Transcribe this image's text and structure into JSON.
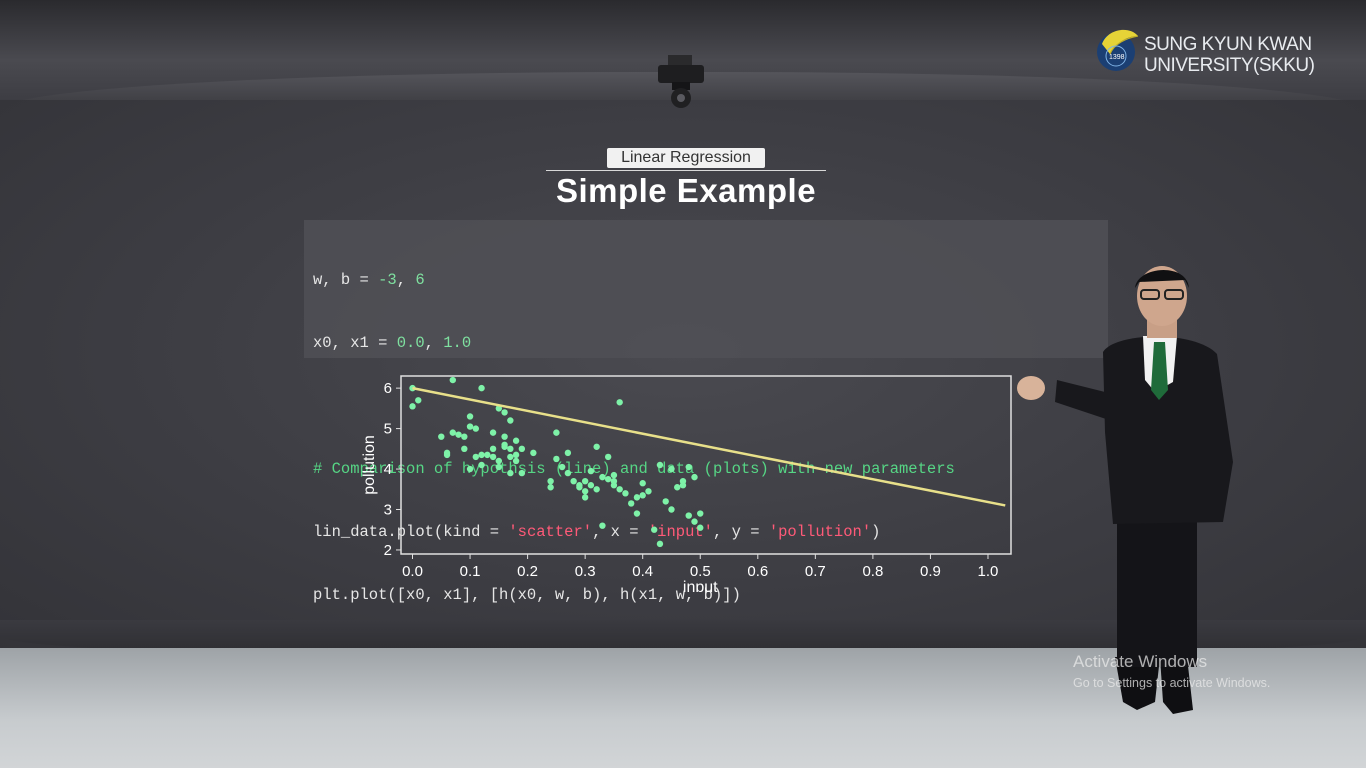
{
  "logo": {
    "line1": "SUNG KYUN KWAN",
    "line2": "UNIVERSITY(SKKU)",
    "year": "1398"
  },
  "slide": {
    "subtitle": "Linear Regression",
    "title": "Simple Example"
  },
  "code": {
    "line1": {
      "pre": "w, b = ",
      "v1": "-3",
      "sep": ", ",
      "v2": "6"
    },
    "line2": {
      "pre": "x0, x1 = ",
      "v1": "0.0",
      "sep": ", ",
      "v2": "1.0"
    },
    "comment": "# Comparison of hypothsis (line) and data (plots) with new parameters",
    "line4": {
      "p1": "lin_data.plot(kind = ",
      "s1": "'scatter'",
      "p2": ", x = ",
      "s2": "'input'",
      "p3": ", y = ",
      "s3": "'pollution'",
      "p4": ")"
    },
    "line5": "plt.plot([x0, x1], [h(x0, w, b), h(x1, w, b)])"
  },
  "chart_data": {
    "type": "scatter",
    "xlabel": "input",
    "ylabel": "pollution",
    "xlim": [
      -0.02,
      1.04
    ],
    "ylim": [
      1.9,
      6.3
    ],
    "xticks": [
      "0.0",
      "0.1",
      "0.2",
      "0.3",
      "0.4",
      "0.5",
      "0.6",
      "0.7",
      "0.8",
      "0.9",
      "1.0"
    ],
    "yticks": [
      "2",
      "3",
      "4",
      "5",
      "6"
    ],
    "colors": {
      "points": "#7ef2a8",
      "line": "#e8e08a",
      "axes": "#e0e0e0"
    },
    "line": {
      "x": [
        0.0,
        1.03
      ],
      "y": [
        6.0,
        3.1
      ]
    },
    "points": [
      [
        0.0,
        6.0
      ],
      [
        0.0,
        5.55
      ],
      [
        0.01,
        5.7
      ],
      [
        0.05,
        4.8
      ],
      [
        0.06,
        4.4
      ],
      [
        0.06,
        4.35
      ],
      [
        0.07,
        4.9
      ],
      [
        0.08,
        4.85
      ],
      [
        0.07,
        6.2
      ],
      [
        0.09,
        4.8
      ],
      [
        0.09,
        4.5
      ],
      [
        0.1,
        5.3
      ],
      [
        0.1,
        5.05
      ],
      [
        0.11,
        4.3
      ],
      [
        0.1,
        4.0
      ],
      [
        0.12,
        4.1
      ],
      [
        0.11,
        5.0
      ],
      [
        0.12,
        6.0
      ],
      [
        0.12,
        4.35
      ],
      [
        0.13,
        4.35
      ],
      [
        0.14,
        4.3
      ],
      [
        0.14,
        4.9
      ],
      [
        0.15,
        4.05
      ],
      [
        0.15,
        4.2
      ],
      [
        0.16,
        4.6
      ],
      [
        0.16,
        4.8
      ],
      [
        0.17,
        3.9
      ],
      [
        0.17,
        4.3
      ],
      [
        0.17,
        4.5
      ],
      [
        0.18,
        4.7
      ],
      [
        0.18,
        4.35
      ],
      [
        0.19,
        4.5
      ],
      [
        0.19,
        3.9
      ],
      [
        0.21,
        4.4
      ],
      [
        0.15,
        5.5
      ],
      [
        0.16,
        5.4
      ],
      [
        0.17,
        5.2
      ],
      [
        0.18,
        4.2
      ],
      [
        0.14,
        4.5
      ],
      [
        0.16,
        4.55
      ],
      [
        0.24,
        3.7
      ],
      [
        0.24,
        3.55
      ],
      [
        0.25,
        4.9
      ],
      [
        0.25,
        4.25
      ],
      [
        0.26,
        4.05
      ],
      [
        0.27,
        3.9
      ],
      [
        0.28,
        3.7
      ],
      [
        0.29,
        3.6
      ],
      [
        0.3,
        3.3
      ],
      [
        0.3,
        3.45
      ],
      [
        0.3,
        3.7
      ],
      [
        0.31,
        3.95
      ],
      [
        0.32,
        4.55
      ],
      [
        0.32,
        3.5
      ],
      [
        0.33,
        3.8
      ],
      [
        0.34,
        4.3
      ],
      [
        0.34,
        3.75
      ],
      [
        0.35,
        3.7
      ],
      [
        0.35,
        3.6
      ],
      [
        0.36,
        3.5
      ],
      [
        0.36,
        5.65
      ],
      [
        0.33,
        2.6
      ],
      [
        0.37,
        3.4
      ],
      [
        0.38,
        3.15
      ],
      [
        0.39,
        2.9
      ],
      [
        0.39,
        3.3
      ],
      [
        0.4,
        3.65
      ],
      [
        0.41,
        3.45
      ],
      [
        0.42,
        2.5
      ],
      [
        0.43,
        2.15
      ],
      [
        0.43,
        4.1
      ],
      [
        0.44,
        3.2
      ],
      [
        0.45,
        4.0
      ],
      [
        0.45,
        3.0
      ],
      [
        0.46,
        3.55
      ],
      [
        0.47,
        3.7
      ],
      [
        0.47,
        3.6
      ],
      [
        0.48,
        4.05
      ],
      [
        0.48,
        2.85
      ],
      [
        0.49,
        3.8
      ],
      [
        0.5,
        2.55
      ],
      [
        0.5,
        2.9
      ],
      [
        0.49,
        2.7
      ],
      [
        0.35,
        3.85
      ],
      [
        0.29,
        3.55
      ],
      [
        0.27,
        4.4
      ],
      [
        0.31,
        3.6
      ],
      [
        0.4,
        3.35
      ]
    ]
  },
  "watermark": {
    "line1": "Activate Windows",
    "line2": "Go to Settings to activate Windows."
  }
}
